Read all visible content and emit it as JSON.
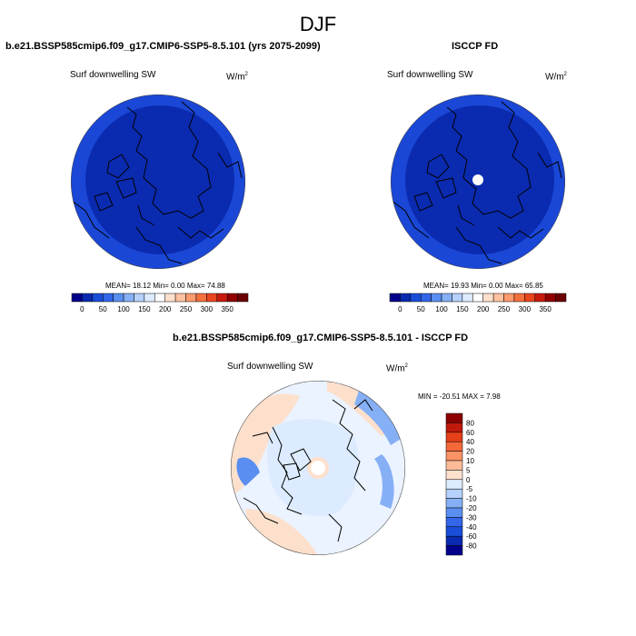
{
  "title": "DJF",
  "panels": [
    {
      "header": "b.e21.BSSP585cmip6.f09_g17.CMIP6-SSP5-8.5.101 (yrs 2075-2099)",
      "variable": "Surf downwelling SW",
      "unit_base": "W/m",
      "unit_exp": "2",
      "stats": "MEAN=  18.12  Min=    0.00  Max=   74.88"
    },
    {
      "header": "ISCCP FD",
      "variable": "Surf downwelling SW",
      "unit_base": "W/m",
      "unit_exp": "2",
      "stats": "MEAN=  19.93  Min=    0.00  Max=   65.85"
    },
    {
      "header": "b.e21.BSSP585cmip6.f09_g17.CMIP6-SSP5-8.5.101 - ISCCP FD",
      "variable": "Surf downwelling SW",
      "unit_base": "W/m",
      "unit_exp": "2",
      "stats": "MIN = -20.51 MAX =   7.98"
    }
  ],
  "abs_colorbar": {
    "labels": [
      "0",
      "50",
      "100",
      "150",
      "200",
      "250",
      "300",
      "350"
    ],
    "colors": [
      "#00008b",
      "#0a2bb0",
      "#1a4ed8",
      "#3366e8",
      "#5a8ef0",
      "#86b0f5",
      "#b4d0fb",
      "#dcebff",
      "#ffffff",
      "#ffe0cc",
      "#ffc1a0",
      "#ff9a6e",
      "#f5703f",
      "#e8461f",
      "#c81b0e",
      "#900000",
      "#6b0000"
    ]
  },
  "diff_colorbar": {
    "labels": [
      "80",
      "60",
      "40",
      "20",
      "10",
      "5",
      "0",
      "-5",
      "-10",
      "-20",
      "-30",
      "-40",
      "-60",
      "-80"
    ],
    "colors": [
      "#8b0000",
      "#c01a0c",
      "#e4401a",
      "#f5683a",
      "#fb9366",
      "#fdbb98",
      "#fde0cc",
      "#dcebff",
      "#b4d0fb",
      "#86b0f5",
      "#5a8ef0",
      "#3366e8",
      "#1a4ed8",
      "#0a2bb0",
      "#00008b"
    ]
  },
  "colors": {
    "deep_blue": "#0a2bb0",
    "ring_blue": "#1a47d6",
    "diff_light": "#dcebff",
    "diff_pale": "#eaf3ff",
    "diff_peach": "#fde0cc"
  }
}
